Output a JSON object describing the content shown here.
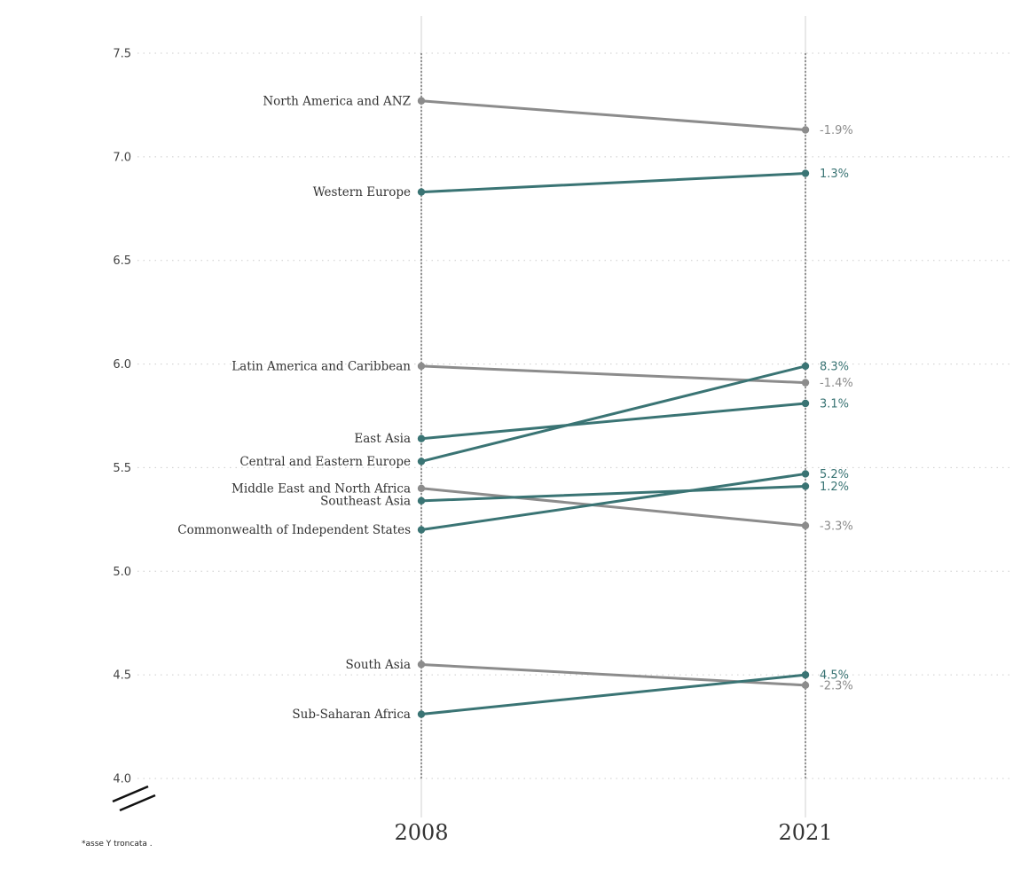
{
  "chart_data": {
    "type": "line",
    "categories": [
      "2008",
      "2021"
    ],
    "ylim": [
      4.0,
      7.5
    ],
    "yticks": [
      "4.0",
      "4.5",
      "5.0",
      "5.5",
      "6.0",
      "6.5",
      "7.0",
      "7.5"
    ],
    "grid": "horizontal dotted",
    "colors": {
      "up": "#3a7474",
      "down": "#8c8c8c"
    },
    "series": [
      {
        "name": "North America and ANZ",
        "values": [
          7.27,
          7.13
        ],
        "change": "-1.9%",
        "direction": "down"
      },
      {
        "name": "Western Europe",
        "values": [
          6.83,
          6.92
        ],
        "change": "1.3%",
        "direction": "up"
      },
      {
        "name": "Latin America and Caribbean",
        "values": [
          5.99,
          5.91
        ],
        "change": "-1.4%",
        "direction": "down"
      },
      {
        "name": "East Asia",
        "values": [
          5.64,
          5.81
        ],
        "change": "3.1%",
        "direction": "up"
      },
      {
        "name": "Central and Eastern Europe",
        "values": [
          5.53,
          5.99
        ],
        "change": "8.3%",
        "direction": "up"
      },
      {
        "name": "Middle East and North Africa",
        "values": [
          5.4,
          5.22
        ],
        "change": "-3.3%",
        "direction": "down"
      },
      {
        "name": "Southeast Asia",
        "values": [
          5.34,
          5.41
        ],
        "change": "1.2%",
        "direction": "up"
      },
      {
        "name": "Commonwealth of Independent States",
        "values": [
          5.2,
          5.47
        ],
        "change": "5.2%",
        "direction": "up"
      },
      {
        "name": "South Asia",
        "values": [
          4.55,
          4.45
        ],
        "change": "-2.3%",
        "direction": "down"
      },
      {
        "name": "Sub-Saharan Africa",
        "values": [
          4.31,
          4.5
        ],
        "change": "4.5%",
        "direction": "up"
      }
    ]
  },
  "footnote": "*asse Y troncata ."
}
